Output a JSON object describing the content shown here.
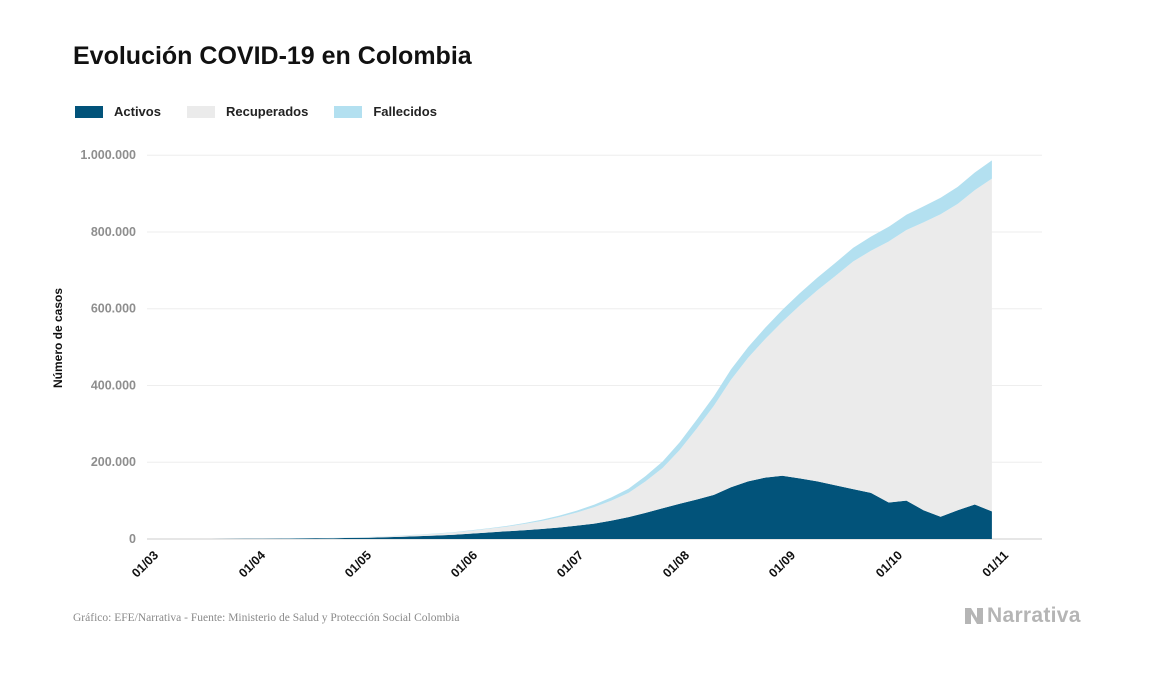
{
  "header": {
    "title": "Evolución COVID-19 en Colombia"
  },
  "legend": [
    {
      "label": "Activos",
      "color": "#02537a"
    },
    {
      "label": "Recuperados",
      "color": "#ebebeb"
    },
    {
      "label": "Fallecidos",
      "color": "#b3e0f0"
    }
  ],
  "footer": {
    "source": "Gráfico: EFE/Narrativa - Fuente: Ministerio de Salud y Protección Social Colombia",
    "brand": "Narrativa"
  },
  "chart_data": {
    "type": "area",
    "stacked": true,
    "ylabel": "Número de casos",
    "xlabel": "",
    "ylim": [
      0,
      1050000
    ],
    "grid": true,
    "legend_position": "top-left",
    "yticks": [
      {
        "value": 0,
        "label": "0"
      },
      {
        "value": 200000,
        "label": "200.000"
      },
      {
        "value": 400000,
        "label": "400.000"
      },
      {
        "value": 600000,
        "label": "600.000"
      },
      {
        "value": 800000,
        "label": "800.000"
      },
      {
        "value": 1000000,
        "label": "1.000.000"
      }
    ],
    "xticks": [
      "01/03",
      "01/04",
      "01/05",
      "01/06",
      "01/07",
      "01/08",
      "01/09",
      "01/10",
      "01/11"
    ],
    "x": [
      "2020-03-01",
      "2020-03-06",
      "2020-03-11",
      "2020-03-16",
      "2020-03-21",
      "2020-03-26",
      "2020-03-31",
      "2020-04-05",
      "2020-04-10",
      "2020-04-15",
      "2020-04-20",
      "2020-04-25",
      "2020-04-30",
      "2020-05-05",
      "2020-05-10",
      "2020-05-15",
      "2020-05-20",
      "2020-05-25",
      "2020-05-30",
      "2020-06-04",
      "2020-06-09",
      "2020-06-14",
      "2020-06-19",
      "2020-06-24",
      "2020-06-29",
      "2020-07-04",
      "2020-07-09",
      "2020-07-14",
      "2020-07-19",
      "2020-07-24",
      "2020-07-29",
      "2020-08-03",
      "2020-08-08",
      "2020-08-13",
      "2020-08-18",
      "2020-08-23",
      "2020-08-28",
      "2020-09-02",
      "2020-09-07",
      "2020-09-12",
      "2020-09-17",
      "2020-09-22",
      "2020-09-27",
      "2020-10-02",
      "2020-10-07",
      "2020-10-12",
      "2020-10-17",
      "2020-10-22",
      "2020-10-27"
    ],
    "series": [
      {
        "name": "Activos",
        "values": [
          0,
          0,
          0,
          100,
          300,
          500,
          700,
          1000,
          1300,
          1800,
          2200,
          2800,
          3500,
          4500,
          6000,
          7500,
          9000,
          11000,
          14000,
          17000,
          20000,
          23000,
          26000,
          30000,
          35000,
          40000,
          48000,
          57000,
          68000,
          80000,
          92000,
          103000,
          115000,
          135000,
          150000,
          160000,
          165000,
          158000,
          150000,
          140000,
          130000,
          120000,
          95000,
          100000,
          75000,
          58000,
          75000,
          90000,
          72000
        ]
      },
      {
        "name": "Recuperados",
        "values": [
          0,
          0,
          0,
          0,
          0,
          0,
          0,
          0,
          100,
          200,
          400,
          800,
          1300,
          2000,
          2800,
          3700,
          4800,
          6000,
          7500,
          9500,
          12000,
          16000,
          21000,
          27000,
          34000,
          43000,
          52000,
          63000,
          82000,
          105000,
          140000,
          185000,
          232000,
          280000,
          322000,
          361000,
          401000,
          450000,
          498000,
          545000,
          593000,
          631000,
          680000,
          705000,
          750000,
          788000,
          798000,
          819000,
          867000
        ]
      },
      {
        "name": "Fallecidos",
        "values": [
          0,
          0,
          0,
          0,
          0,
          0,
          0,
          50,
          100,
          150,
          200,
          250,
          300,
          400,
          500,
          600,
          750,
          900,
          1100,
          1400,
          1800,
          2300,
          3000,
          3900,
          5000,
          6500,
          8500,
          11000,
          14000,
          17000,
          20000,
          23000,
          25000,
          27000,
          28000,
          29500,
          31000,
          32000,
          33000,
          34000,
          35500,
          37000,
          38500,
          40000,
          41500,
          43000,
          44500,
          46000,
          47500
        ]
      }
    ]
  }
}
